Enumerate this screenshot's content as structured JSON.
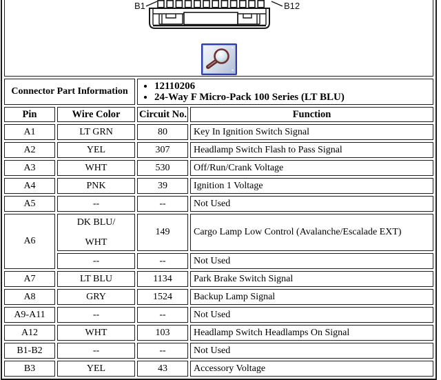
{
  "connector_section": {
    "pin_label_start": "B1",
    "pin_label_end": "B12",
    "pin_count": 12,
    "zoom_button_icon": "magnifier-icon"
  },
  "part_info": {
    "label": "Connector Part Information",
    "details": [
      "12110206",
      "24-Way F Micro-Pack 100 Series (LT BLU)"
    ]
  },
  "pin_table": {
    "headers": [
      "Pin",
      "Wire Color",
      "Circuit No.",
      "Function"
    ],
    "rows": [
      {
        "pin": "A1",
        "wire_color": "LT GRN",
        "circuit": "80",
        "function": "Key In Ignition Switch Signal"
      },
      {
        "pin": "A2",
        "wire_color": "YEL",
        "circuit": "307",
        "function": "Headlamp Switch Flash to Pass Signal"
      },
      {
        "pin": "A3",
        "wire_color": "WHT",
        "circuit": "530",
        "function": "Off/Run/Crank Voltage"
      },
      {
        "pin": "A4",
        "wire_color": "PNK",
        "circuit": "39",
        "function": "Ignition 1 Voltage"
      },
      {
        "pin": "A5",
        "wire_color": "--",
        "circuit": "--",
        "function": "Not Used"
      },
      {
        "pin": "A6",
        "rowspan": 2,
        "tall": true,
        "wire_color": [
          "DK BLU/",
          "WHT"
        ],
        "circuit": "149",
        "function": "Cargo Lamp Low Control (Avalanche/Escalade EXT)"
      },
      {
        "merged": true,
        "wire_color": "--",
        "circuit": "--",
        "function": "Not Used"
      },
      {
        "pin": "A7",
        "wire_color": "LT BLU",
        "circuit": "1134",
        "function": "Park Brake Switch Signal"
      },
      {
        "pin": "A8",
        "wire_color": "GRY",
        "circuit": "1524",
        "function": "Backup Lamp Signal"
      },
      {
        "pin": "A9-A11",
        "wire_color": "--",
        "circuit": "--",
        "function": "Not Used"
      },
      {
        "pin": "A12",
        "wire_color": "WHT",
        "circuit": "103",
        "function": "Headlamp Switch Headlamps On Signal"
      },
      {
        "pin": "B1-B2",
        "wire_color": "--",
        "circuit": "--",
        "function": "Not Used"
      },
      {
        "pin": "B3",
        "wire_color": "YEL",
        "circuit": "43",
        "function": "Accessory Voltage"
      }
    ]
  },
  "colors": {
    "table_border": "#1b1b1b",
    "button_border": "#2e3dae",
    "magnifier_ring": "#6e3131"
  }
}
